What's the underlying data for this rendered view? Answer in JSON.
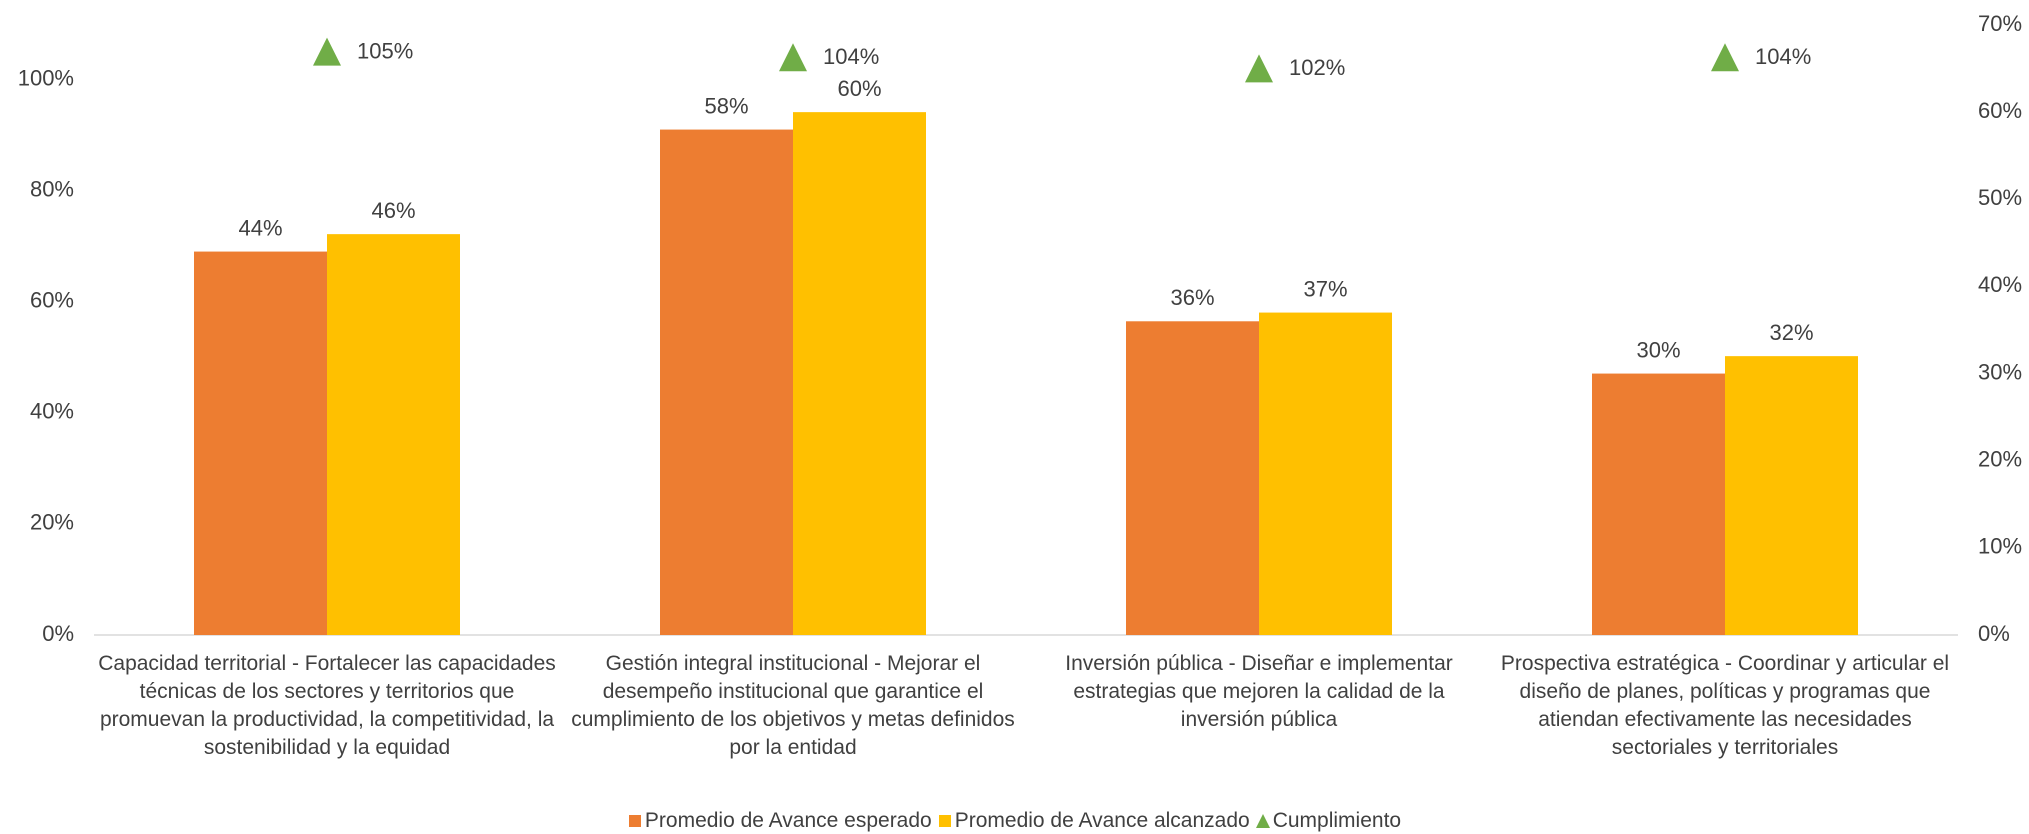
{
  "chart_data": {
    "type": "bar",
    "categories": [
      "Capacidad territorial - Fortalecer las capacidades técnicas de los sectores y territorios que promuevan la productividad, la competitividad, la sostenibilidad y la equidad",
      "Gestión integral institucional - Mejorar el desempeño institucional que garantice el cumplimiento de los objetivos y metas definidos por la entidad",
      "Inversión pública - Diseñar e implementar estrategias que mejoren la calidad de la inversión pública",
      "Prospectiva estratégica - Coordinar y articular el diseño de planes, políticas y programas que atiendan efectivamente las necesidades sectoriales y territoriales"
    ],
    "series": [
      {
        "name": "Promedio de Avance esperado",
        "color": "#ED7D31",
        "axis": "y2",
        "values": [
          44,
          58,
          36,
          30
        ],
        "value_labels": [
          "44%",
          "58%",
          "36%",
          "30%"
        ]
      },
      {
        "name": "Promedio de Avance alcanzado",
        "color": "#FFC000",
        "axis": "y2",
        "values": [
          46,
          60,
          37,
          32
        ],
        "value_labels": [
          "46%",
          "60%",
          "37%",
          "32%"
        ]
      },
      {
        "name": "Cumplimiento",
        "color": "#70AD47",
        "axis": "y",
        "type": "scatter",
        "marker": "triangle",
        "values": [
          105,
          104,
          102,
          104
        ],
        "value_labels": [
          "105%",
          "104%",
          "102%",
          "104%"
        ]
      }
    ],
    "ylim": [
      0,
      109.8
    ],
    "yticks": [
      {
        "value": 0,
        "label": "0%"
      },
      {
        "value": 20,
        "label": "20%"
      },
      {
        "value": 40,
        "label": "40%"
      },
      {
        "value": 60,
        "label": "60%"
      },
      {
        "value": 80,
        "label": "80%"
      },
      {
        "value": 100,
        "label": "100%"
      }
    ],
    "y2lim": [
      0,
      70
    ],
    "y2ticks": [
      {
        "value": 0,
        "label": "0%"
      },
      {
        "value": 10,
        "label": "10%"
      },
      {
        "value": 20,
        "label": "20%"
      },
      {
        "value": 30,
        "label": "30%"
      },
      {
        "value": 40,
        "label": "40%"
      },
      {
        "value": 50,
        "label": "50%"
      },
      {
        "value": 60,
        "label": "60%"
      },
      {
        "value": 70,
        "label": "70%"
      }
    ],
    "grid": false,
    "legend": "bottom"
  }
}
